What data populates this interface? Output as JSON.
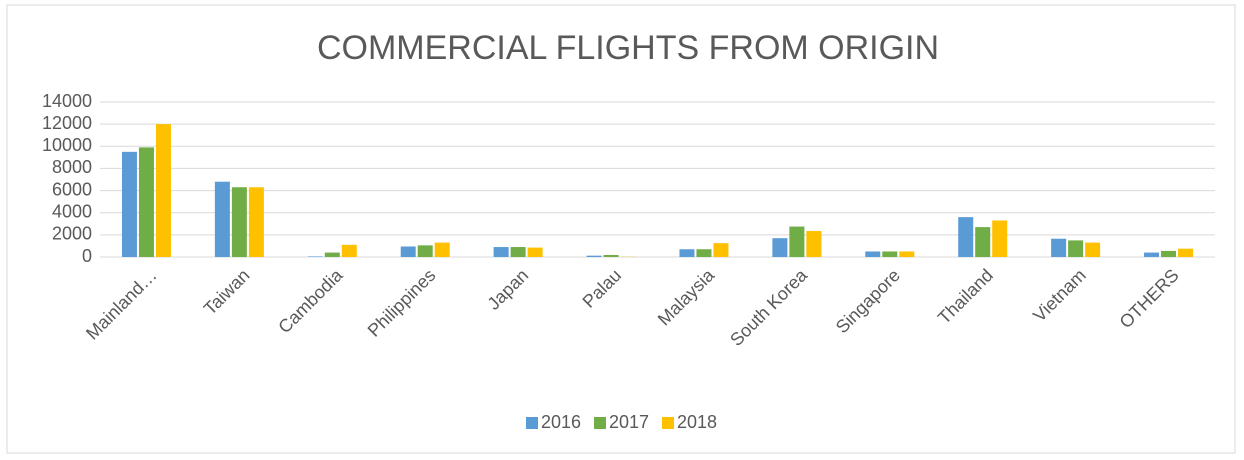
{
  "chart_data": {
    "type": "bar",
    "title": "COMMERCIAL FLIGHTS FROM ORIGIN",
    "categories": [
      "Mainland…",
      "Taiwan",
      "Cambodia",
      "Philippines",
      "Japan",
      "Palau",
      "Malaysia",
      "South Korea",
      "Singapore",
      "Thailand",
      "Vietnam",
      "OTHERS"
    ],
    "series": [
      {
        "name": "2016",
        "color": "#5b9bd5",
        "values": [
          9500,
          6800,
          50,
          950,
          900,
          120,
          700,
          1700,
          500,
          3600,
          1650,
          400
        ]
      },
      {
        "name": "2017",
        "color": "#70ad47",
        "values": [
          9900,
          6300,
          400,
          1050,
          900,
          180,
          700,
          2750,
          500,
          2700,
          1500,
          550
        ]
      },
      {
        "name": "2018",
        "color": "#ffc000",
        "values": [
          12000,
          6300,
          1100,
          1300,
          850,
          20,
          1250,
          2350,
          500,
          3300,
          1300,
          750
        ]
      }
    ],
    "ylim": [
      0,
      14000
    ],
    "yticks": [
      0,
      2000,
      4000,
      6000,
      8000,
      10000,
      12000,
      14000
    ],
    "grid": true,
    "legend": "bottom"
  }
}
